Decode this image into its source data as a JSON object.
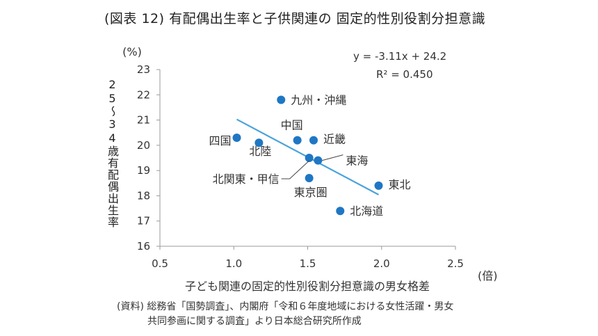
{
  "title": "(図表 12) 有配偶出生率と子供関連の 固定的性別役割分担意識",
  "source": {
    "line1": "(資料) 総務省「国勢調査」、内閣府「令和６年度地域における女性活躍・男女",
    "line2": "共同参画に関する調査」より日本総合研究所作成"
  },
  "chart_data": {
    "type": "scatter",
    "title": "(図表 12) 有配偶出生率と子供関連の 固定的性別役割分担意識",
    "xlabel": "子ども関連の固定的性別役割分担意識の男女格差",
    "xunit": "(倍)",
    "ylabel": "25〜34歳有配偶出生率",
    "yunit": "(%)",
    "xlim": [
      0.5,
      2.5
    ],
    "ylim": [
      16,
      23
    ],
    "xticks": [
      "0.5",
      "1.0",
      "1.5",
      "2.0",
      "2.5"
    ],
    "yticks": [
      "16",
      "17",
      "18",
      "19",
      "20",
      "21",
      "22",
      "23"
    ],
    "point_color": "#1f77c4",
    "trend_color": "#4aa3dc",
    "points": [
      {
        "label": "九州・沖縄",
        "x": 1.32,
        "y": 21.8
      },
      {
        "label": "四国",
        "x": 1.02,
        "y": 20.3
      },
      {
        "label": "北陸",
        "x": 1.17,
        "y": 20.1
      },
      {
        "label": "中国",
        "x": 1.43,
        "y": 20.2
      },
      {
        "label": "近畿",
        "x": 1.54,
        "y": 20.2
      },
      {
        "label": "北関東・甲信",
        "x": 1.51,
        "y": 19.5
      },
      {
        "label": "東海",
        "x": 1.57,
        "y": 19.4
      },
      {
        "label": "東京圏",
        "x": 1.51,
        "y": 18.7
      },
      {
        "label": "北海道",
        "x": 1.72,
        "y": 17.4
      },
      {
        "label": "東北",
        "x": 1.98,
        "y": 18.4
      }
    ],
    "trendline": {
      "slope": -3.11,
      "intercept": 24.2,
      "x_range": [
        1.02,
        1.98
      ]
    },
    "equation": "y = -3.11x + 24.2",
    "r2": "R² = 0.450",
    "grid": false,
    "legend": "none"
  }
}
